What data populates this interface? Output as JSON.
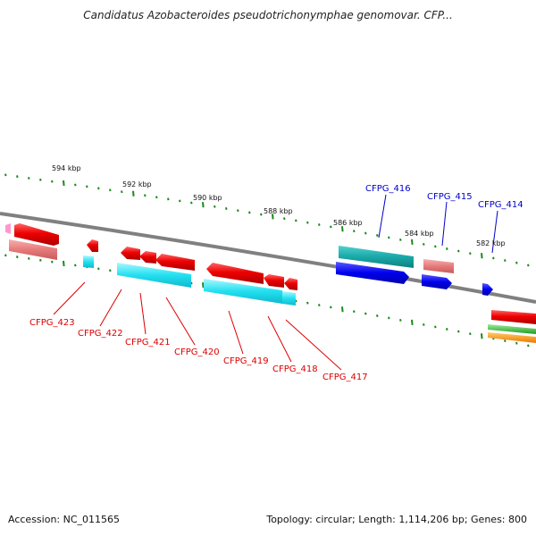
{
  "title": "Candidatus Azobacteroides pseudotrichonymphae genomovar. CFP...",
  "footer": {
    "accession": "Accession: NC_011565",
    "stats": "Topology: circular; Length: 1,114,206 bp; Genes: 800"
  },
  "ticks": [
    {
      "label": "594 kbp"
    },
    {
      "label": "592 kbp"
    },
    {
      "label": "590 kbp"
    },
    {
      "label": "588 kbp"
    },
    {
      "label": "586 kbp"
    },
    {
      "label": "584 kbp"
    },
    {
      "label": "582 kbp"
    }
  ],
  "gene_labels": [
    {
      "name": "CFPG_423",
      "color": "#dd0000"
    },
    {
      "name": "CFPG_422",
      "color": "#dd0000"
    },
    {
      "name": "CFPG_421",
      "color": "#dd0000"
    },
    {
      "name": "CFPG_420",
      "color": "#dd0000"
    },
    {
      "name": "CFPG_419",
      "color": "#dd0000"
    },
    {
      "name": "CFPG_418",
      "color": "#dd0000"
    },
    {
      "name": "CFPG_417",
      "color": "#dd0000"
    },
    {
      "name": "CFPG_416",
      "color": "#0000cc"
    },
    {
      "name": "CFPG_415",
      "color": "#0000cc"
    },
    {
      "name": "CFPG_414",
      "color": "#0000cc"
    }
  ],
  "colors": {
    "backbone": "#808080",
    "tick": "#1a8a1a",
    "forward_gene": "#ee0000",
    "forward_gene_light": "#ee8080",
    "cds_cyan": "#22e0f0",
    "cds_teal": "#20b0b0",
    "reverse_gene": "#0000dd",
    "green_track": "#33bb33",
    "orange_track": "#ff8800",
    "pink_gene": "#ff99cc"
  }
}
